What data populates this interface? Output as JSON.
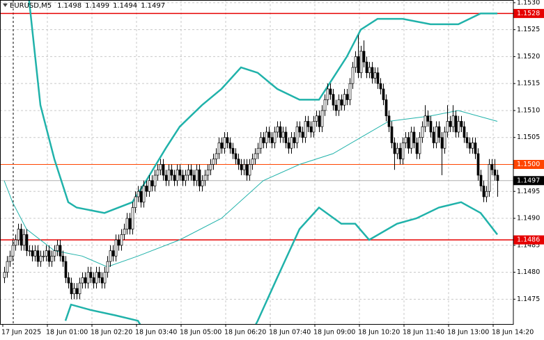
{
  "chart_data": {
    "type": "candlestick",
    "title": "EURUSD,M5",
    "header_values": [
      1.1498,
      1.1499,
      1.1494,
      1.1497
    ],
    "ylim": [
      1.14704,
      1.15305
    ],
    "yticks": [
      {
        "value": 1.153,
        "label": "1.1530"
      },
      1.1525,
      {
        "value": 1.152,
        "label": "1.1520"
      },
      1.1515,
      {
        "value": 1.151,
        "label": "1.1510"
      },
      1.1505,
      1.1495,
      {
        "value": 1.149,
        "label": "1.1490"
      },
      1.1485,
      {
        "value": 1.148,
        "label": "1.1480"
      },
      1.1475
    ],
    "xticks": [
      {
        "value": 0,
        "label": "17 Jun 2025"
      },
      {
        "value": 16,
        "label": "18 Jun 01:00"
      },
      {
        "value": 32,
        "label": "18 Jun 02:20"
      },
      {
        "value": 48,
        "label": "18 Jun 03:40"
      },
      {
        "value": 64,
        "label": "18 Jun 05:00"
      },
      {
        "value": 80,
        "label": "18 Jun 06:20"
      },
      {
        "value": 96,
        "label": "18 Jun 07:40"
      },
      {
        "value": 112,
        "label": "18 Jun 09:00"
      },
      {
        "value": 128,
        "label": "18 Jun 10:20"
      },
      {
        "value": 144,
        "label": "18 Jun 11:40"
      },
      {
        "value": 160,
        "label": "18 Jun 13:00"
      },
      {
        "value": 176,
        "label": "18 Jun 14:20"
      }
    ],
    "grid": true,
    "candle_up_color": "#ffffff",
    "candle_down_color": "#000000",
    "ohlc": [
      [
        1.1479,
        1.1481,
        1.1478,
        1.148
      ],
      [
        1.148,
        1.1483,
        1.1479,
        1.1482
      ],
      [
        1.1482,
        1.1484,
        1.1481,
        1.1483
      ],
      [
        1.1483,
        1.1486,
        1.1482,
        1.1485
      ],
      [
        1.1485,
        1.1487,
        1.1484,
        1.1486
      ],
      [
        1.1486,
        1.1489,
        1.1485,
        1.1488
      ],
      [
        1.1488,
        1.1489,
        1.1484,
        1.1485
      ],
      [
        1.1485,
        1.1488,
        1.1484,
        1.1487
      ],
      [
        1.1487,
        1.1488,
        1.1483,
        1.1484
      ],
      [
        1.1484,
        1.1485,
        1.1483,
        1.1484
      ],
      [
        1.1484,
        1.1485,
        1.1482,
        1.1483
      ],
      [
        1.1483,
        1.1485,
        1.1482,
        1.1484
      ],
      [
        1.1484,
        1.1485,
        1.1481,
        1.1482
      ],
      [
        1.1482,
        1.1484,
        1.1481,
        1.1483
      ],
      [
        1.1483,
        1.1484,
        1.1482,
        1.1483
      ],
      [
        1.1483,
        1.1485,
        1.1482,
        1.1484
      ],
      [
        1.1484,
        1.1485,
        1.1481,
        1.1482
      ],
      [
        1.1482,
        1.1484,
        1.1481,
        1.1483
      ],
      [
        1.1483,
        1.1485,
        1.1482,
        1.1484
      ],
      [
        1.1484,
        1.1486,
        1.1483,
        1.1485
      ],
      [
        1.1485,
        1.1486,
        1.1482,
        1.1483
      ],
      [
        1.1483,
        1.1484,
        1.1481,
        1.1482
      ],
      [
        1.1482,
        1.1483,
        1.1478,
        1.1479
      ],
      [
        1.1479,
        1.148,
        1.1477,
        1.1478
      ],
      [
        1.1478,
        1.1479,
        1.1475,
        1.1476
      ],
      [
        1.1476,
        1.1478,
        1.1475,
        1.1477
      ],
      [
        1.1477,
        1.1478,
        1.1475,
        1.1476
      ],
      [
        1.1476,
        1.1479,
        1.1475,
        1.1478
      ],
      [
        1.1478,
        1.148,
        1.1477,
        1.1479
      ],
      [
        1.1479,
        1.148,
        1.1477,
        1.1478
      ],
      [
        1.1478,
        1.1481,
        1.1477,
        1.148
      ],
      [
        1.148,
        1.1481,
        1.1478,
        1.1479
      ],
      [
        1.1479,
        1.148,
        1.1477,
        1.1478
      ],
      [
        1.1478,
        1.1481,
        1.1477,
        1.148
      ],
      [
        1.148,
        1.1481,
        1.1478,
        1.1479
      ],
      [
        1.1479,
        1.148,
        1.1477,
        1.1478
      ],
      [
        1.1478,
        1.1481,
        1.1477,
        1.148
      ],
      [
        1.148,
        1.1483,
        1.1479,
        1.1482
      ],
      [
        1.1482,
        1.1485,
        1.1481,
        1.1484
      ],
      [
        1.1484,
        1.1485,
        1.1482,
        1.1483
      ],
      [
        1.1483,
        1.1487,
        1.1482,
        1.1486
      ],
      [
        1.1486,
        1.1487,
        1.1484,
        1.1485
      ],
      [
        1.1485,
        1.1488,
        1.1484,
        1.1487
      ],
      [
        1.1487,
        1.1489,
        1.1486,
        1.1488
      ],
      [
        1.1488,
        1.1491,
        1.1487,
        1.149
      ],
      [
        1.149,
        1.1491,
        1.1487,
        1.1488
      ],
      [
        1.1488,
        1.1493,
        1.1487,
        1.1492
      ],
      [
        1.1492,
        1.1495,
        1.1491,
        1.1494
      ],
      [
        1.1494,
        1.1496,
        1.1493,
        1.1495
      ],
      [
        1.1495,
        1.1496,
        1.1492,
        1.1493
      ],
      [
        1.1493,
        1.1497,
        1.1492,
        1.1496
      ],
      [
        1.1496,
        1.1497,
        1.1494,
        1.1495
      ],
      [
        1.1495,
        1.1498,
        1.1494,
        1.1497
      ],
      [
        1.1497,
        1.1498,
        1.1495,
        1.1496
      ],
      [
        1.1496,
        1.1499,
        1.1495,
        1.1498
      ],
      [
        1.1498,
        1.15,
        1.1497,
        1.1499
      ],
      [
        1.1499,
        1.1501,
        1.1498,
        1.15
      ],
      [
        1.15,
        1.1501,
        1.1497,
        1.1498
      ],
      [
        1.1498,
        1.1499,
        1.1496,
        1.1497
      ],
      [
        1.1497,
        1.15,
        1.1496,
        1.1499
      ],
      [
        1.1499,
        1.15,
        1.1497,
        1.1498
      ],
      [
        1.1498,
        1.1499,
        1.1496,
        1.1497
      ],
      [
        1.1497,
        1.15,
        1.1496,
        1.1499
      ],
      [
        1.1499,
        1.15,
        1.1497,
        1.1498
      ],
      [
        1.1498,
        1.1499,
        1.1496,
        1.1497
      ],
      [
        1.1497,
        1.1499,
        1.1496,
        1.1498
      ],
      [
        1.1498,
        1.15,
        1.1497,
        1.1499
      ],
      [
        1.1499,
        1.15,
        1.1497,
        1.1498
      ],
      [
        1.1498,
        1.1499,
        1.1496,
        1.1497
      ],
      [
        1.1497,
        1.15,
        1.1496,
        1.1499
      ],
      [
        1.1499,
        1.15,
        1.1495,
        1.1496
      ],
      [
        1.1496,
        1.1498,
        1.1495,
        1.1497
      ],
      [
        1.1497,
        1.1499,
        1.1496,
        1.1498
      ],
      [
        1.1498,
        1.15,
        1.1497,
        1.1499
      ],
      [
        1.1499,
        1.1501,
        1.1498,
        1.15
      ],
      [
        1.15,
        1.1502,
        1.1499,
        1.1501
      ],
      [
        1.1501,
        1.1503,
        1.15,
        1.1502
      ],
      [
        1.1502,
        1.1505,
        1.1501,
        1.1504
      ],
      [
        1.1504,
        1.1505,
        1.1502,
        1.1503
      ],
      [
        1.1503,
        1.1506,
        1.1502,
        1.1505
      ],
      [
        1.1505,
        1.1506,
        1.1503,
        1.1504
      ],
      [
        1.1504,
        1.1505,
        1.1502,
        1.1503
      ],
      [
        1.1503,
        1.1504,
        1.1501,
        1.1502
      ],
      [
        1.1502,
        1.1503,
        1.15,
        1.1501
      ],
      [
        1.1501,
        1.1502,
        1.1499,
        1.15
      ],
      [
        1.15,
        1.1501,
        1.1498,
        1.1499
      ],
      [
        1.1499,
        1.1501,
        1.1498,
        1.15
      ],
      [
        1.15,
        1.1501,
        1.1497,
        1.1498
      ],
      [
        1.1498,
        1.1501,
        1.1497,
        1.15
      ],
      [
        1.15,
        1.1502,
        1.1499,
        1.1501
      ],
      [
        1.1501,
        1.1503,
        1.15,
        1.1502
      ],
      [
        1.1502,
        1.1504,
        1.1501,
        1.1503
      ],
      [
        1.1503,
        1.1506,
        1.1502,
        1.1505
      ],
      [
        1.1505,
        1.1506,
        1.1503,
        1.1504
      ],
      [
        1.1504,
        1.1507,
        1.1503,
        1.1506
      ],
      [
        1.1506,
        1.1507,
        1.1504,
        1.1505
      ],
      [
        1.1505,
        1.1506,
        1.1503,
        1.1504
      ],
      [
        1.1504,
        1.1507,
        1.1503,
        1.1506
      ],
      [
        1.1506,
        1.1508,
        1.1505,
        1.1507
      ],
      [
        1.1507,
        1.1508,
        1.1504,
        1.1505
      ],
      [
        1.1505,
        1.1507,
        1.1504,
        1.1506
      ],
      [
        1.1506,
        1.1507,
        1.1503,
        1.1504
      ],
      [
        1.1504,
        1.1505,
        1.1502,
        1.1503
      ],
      [
        1.1503,
        1.1506,
        1.1502,
        1.1505
      ],
      [
        1.1505,
        1.1506,
        1.1503,
        1.1504
      ],
      [
        1.1504,
        1.1508,
        1.1503,
        1.1507
      ],
      [
        1.1507,
        1.1508,
        1.1505,
        1.1506
      ],
      [
        1.1506,
        1.1507,
        1.1504,
        1.1505
      ],
      [
        1.1505,
        1.1509,
        1.1504,
        1.1508
      ],
      [
        1.1508,
        1.1509,
        1.1506,
        1.1507
      ],
      [
        1.1507,
        1.1508,
        1.1505,
        1.1506
      ],
      [
        1.1506,
        1.1509,
        1.1505,
        1.1508
      ],
      [
        1.1508,
        1.151,
        1.1507,
        1.1509
      ],
      [
        1.1509,
        1.151,
        1.1506,
        1.1507
      ],
      [
        1.1507,
        1.1511,
        1.1506,
        1.151
      ],
      [
        1.151,
        1.1513,
        1.1509,
        1.1512
      ],
      [
        1.1512,
        1.1515,
        1.1511,
        1.1514
      ],
      [
        1.1514,
        1.1515,
        1.1512,
        1.1513
      ],
      [
        1.1513,
        1.1514,
        1.151,
        1.1511
      ],
      [
        1.1511,
        1.1512,
        1.1509,
        1.151
      ],
      [
        1.151,
        1.1513,
        1.1509,
        1.1512
      ],
      [
        1.1512,
        1.1513,
        1.151,
        1.1511
      ],
      [
        1.1511,
        1.1514,
        1.151,
        1.1513
      ],
      [
        1.1513,
        1.1514,
        1.1511,
        1.1512
      ],
      [
        1.1512,
        1.1516,
        1.1511,
        1.1515
      ],
      [
        1.1515,
        1.1519,
        1.1514,
        1.1518
      ],
      [
        1.1518,
        1.1521,
        1.1517,
        1.152
      ],
      [
        1.152,
        1.1524,
        1.1516,
        1.1517
      ],
      [
        1.1517,
        1.1522,
        1.1516,
        1.1521
      ],
      [
        1.1521,
        1.1523,
        1.1518,
        1.1519
      ],
      [
        1.1519,
        1.152,
        1.1516,
        1.1517
      ],
      [
        1.1517,
        1.1519,
        1.1516,
        1.1518
      ],
      [
        1.1518,
        1.1519,
        1.1515,
        1.1516
      ],
      [
        1.1516,
        1.1518,
        1.1515,
        1.1517
      ],
      [
        1.1517,
        1.1518,
        1.1514,
        1.1515
      ],
      [
        1.1515,
        1.1516,
        1.1513,
        1.1514
      ],
      [
        1.1514,
        1.1515,
        1.1511,
        1.1512
      ],
      [
        1.1512,
        1.1513,
        1.1508,
        1.1509
      ],
      [
        1.1509,
        1.151,
        1.1506,
        1.1507
      ],
      [
        1.1507,
        1.1508,
        1.1503,
        1.1504
      ],
      [
        1.1504,
        1.1505,
        1.1499,
        1.1502
      ],
      [
        1.1502,
        1.1504,
        1.1501,
        1.1503
      ],
      [
        1.1503,
        1.1504,
        1.15,
        1.1501
      ],
      [
        1.1501,
        1.1505,
        1.15,
        1.1504
      ],
      [
        1.1504,
        1.1506,
        1.1503,
        1.1505
      ],
      [
        1.1505,
        1.1506,
        1.1502,
        1.1503
      ],
      [
        1.1503,
        1.1507,
        1.1502,
        1.1506
      ],
      [
        1.1506,
        1.1507,
        1.1503,
        1.1504
      ],
      [
        1.1504,
        1.1505,
        1.1501,
        1.1502
      ],
      [
        1.1502,
        1.1506,
        1.1501,
        1.1505
      ],
      [
        1.1505,
        1.1508,
        1.1504,
        1.1507
      ],
      [
        1.1507,
        1.1511,
        1.1506,
        1.1509
      ],
      [
        1.1509,
        1.151,
        1.1507,
        1.1508
      ],
      [
        1.1508,
        1.1509,
        1.1505,
        1.1506
      ],
      [
        1.1506,
        1.1507,
        1.1503,
        1.1504
      ],
      [
        1.1504,
        1.1508,
        1.1503,
        1.1507
      ],
      [
        1.1507,
        1.1508,
        1.1504,
        1.1505
      ],
      [
        1.1505,
        1.1506,
        1.1498,
        1.1503
      ],
      [
        1.1503,
        1.1507,
        1.1502,
        1.1506
      ],
      [
        1.1506,
        1.1511,
        1.1505,
        1.1508
      ],
      [
        1.1508,
        1.1509,
        1.1506,
        1.1507
      ],
      [
        1.1507,
        1.1511,
        1.1506,
        1.1509
      ],
      [
        1.1509,
        1.151,
        1.1505,
        1.1506
      ],
      [
        1.1506,
        1.1509,
        1.1505,
        1.1508
      ],
      [
        1.1508,
        1.1509,
        1.1506,
        1.1507
      ],
      [
        1.1507,
        1.1508,
        1.1504,
        1.1505
      ],
      [
        1.1505,
        1.1506,
        1.1503,
        1.1504
      ],
      [
        1.1504,
        1.1505,
        1.1502,
        1.1503
      ],
      [
        1.1503,
        1.1505,
        1.1502,
        1.1504
      ],
      [
        1.1504,
        1.1505,
        1.1501,
        1.1502
      ],
      [
        1.1502,
        1.1503,
        1.1497,
        1.1498
      ],
      [
        1.1498,
        1.1499,
        1.1495,
        1.1496
      ],
      [
        1.1496,
        1.1497,
        1.1493,
        1.1494
      ],
      [
        1.1494,
        1.1496,
        1.1493,
        1.1495
      ],
      [
        1.1495,
        1.1501,
        1.1494,
        1.15
      ],
      [
        1.15,
        1.1501,
        1.1498,
        1.1499
      ],
      [
        1.1499,
        1.1501,
        1.1497,
        1.1498
      ],
      [
        1.1498,
        1.1499,
        1.1494,
        1.1497
      ]
    ],
    "indicators": [
      {
        "color": "#20b2aa",
        "width": 2.5,
        "x": [
          8,
          13,
          18,
          23,
          26,
          36,
          46,
          51,
          58,
          63,
          71,
          78,
          85,
          91,
          98,
          106,
          113,
          118,
          123,
          128,
          134,
          143,
          153,
          163,
          171,
          177
        ],
        "values": [
          1.1535,
          1.1511,
          1.1501,
          1.1493,
          1.1492,
          1.1491,
          1.1493,
          1.1497,
          1.1503,
          1.1507,
          1.1511,
          1.1514,
          1.1518,
          1.1517,
          1.1514,
          1.1512,
          1.1512,
          1.1516,
          1.152,
          1.1525,
          1.1527,
          1.1527,
          1.1526,
          1.1526,
          1.1528,
          1.1528
        ]
      },
      {
        "color": "#20b2aa",
        "width": 2.5,
        "x": [
          22,
          24,
          31,
          40,
          48,
          55,
          85,
          91,
          98,
          106,
          113,
          121,
          126,
          131,
          141,
          148,
          156,
          164,
          171,
          177
        ],
        "values": [
          1.1471,
          1.1474,
          1.1473,
          1.1472,
          1.1471,
          1.1465,
          1.1465,
          1.1471,
          1.1479,
          1.1488,
          1.1492,
          1.1489,
          1.1489,
          1.1486,
          1.1489,
          1.149,
          1.1492,
          1.1493,
          1.1491,
          1.1487
        ]
      },
      {
        "color": "#20b2aa",
        "width": 1,
        "x": [
          0,
          3,
          8,
          18,
          28,
          37,
          48,
          63,
          78,
          93,
          106,
          118,
          128,
          138,
          153,
          163,
          177
        ],
        "values": [
          1.1497,
          1.1493,
          1.1488,
          1.1484,
          1.1483,
          1.1481,
          1.1483,
          1.1486,
          1.149,
          1.1497,
          1.15,
          1.1502,
          1.1505,
          1.1508,
          1.1509,
          1.151,
          1.1508
        ]
      }
    ],
    "hlines": [
      {
        "value": 1.1528,
        "color": "#e60000",
        "width": 1.5
      },
      {
        "value": {
          "value": 1.15,
          "label": "1.1500"
        },
        "color": "#ff4500",
        "width": 1
      },
      {
        "value": 1.1486,
        "color": "#e60000",
        "width": 1.5
      }
    ],
    "last_price": 1.1497
  }
}
